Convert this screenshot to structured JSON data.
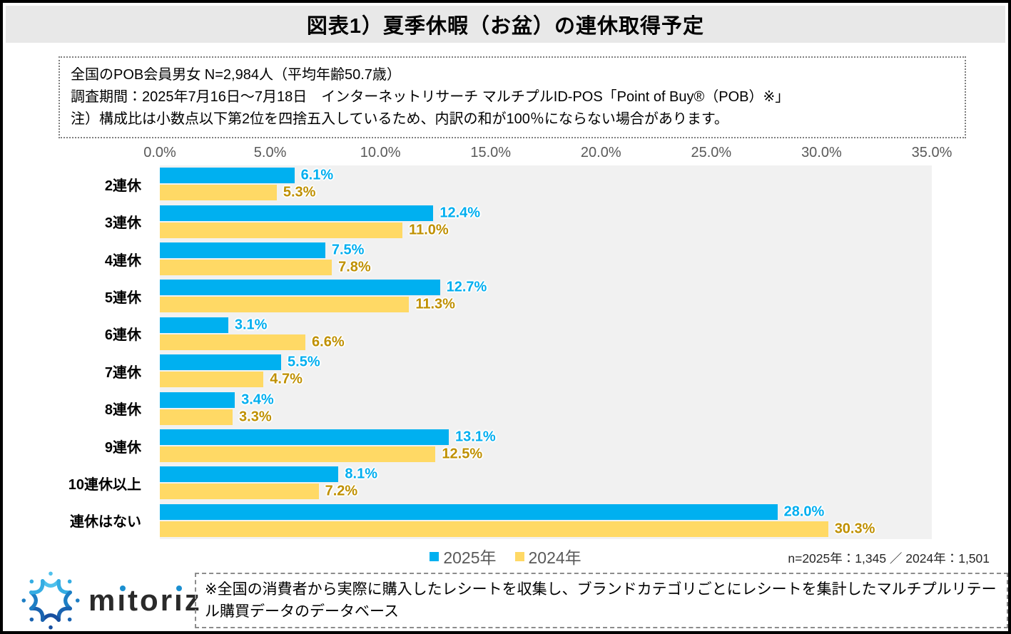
{
  "header": {
    "title": "図表1）夏季休暇（お盆）の連休取得予定"
  },
  "survey_note": {
    "line1": "全国のPOB会員男女 N=2,984人（平均年齢50.7歳）",
    "line2": "調査期間：2025年7月16日～7月18日　インターネットリサーチ マルチプルID-POS「Point of Buy®（POB）※」",
    "line3": "注）構成比は小数点以下第2位を四捨五入しているため、内訳の和が100％にならない場合があります。"
  },
  "chart_data": {
    "type": "bar",
    "orientation": "horizontal",
    "categories": [
      "2連休",
      "3連休",
      "4連休",
      "5連休",
      "6連休",
      "7連休",
      "8連休",
      "9連休",
      "10連休以上",
      "連休はない"
    ],
    "series": [
      {
        "name": "2025年",
        "color": "#00B0F0",
        "label_color": "#00AEEF",
        "values": [
          6.1,
          12.4,
          7.5,
          12.7,
          3.1,
          5.5,
          3.4,
          13.1,
          8.1,
          28.0
        ]
      },
      {
        "name": "2024年",
        "color": "#FFD965",
        "label_color": "#BF9000",
        "values": [
          5.3,
          11.0,
          7.8,
          11.3,
          6.6,
          4.7,
          3.3,
          12.5,
          7.2,
          30.3
        ]
      }
    ],
    "x_ticks": [
      "0.0%",
      "5.0%",
      "10.0%",
      "15.0%",
      "20.0%",
      "25.0%",
      "30.0%",
      "35.0%"
    ],
    "xlim": [
      0,
      35
    ],
    "value_suffix": "%",
    "plot_background": "#F1F1F1",
    "grid": false,
    "legend_position": "bottom-center"
  },
  "sample_note": "n=2025年：1,345 ／ 2024年：1,501",
  "footer": {
    "logo_text": "mitoriz",
    "note": "※全国の消費者から実際に購入したレシートを収集し、ブランドカテゴリごとにレシートを集計したマルチプルリテール購買データのデータベース"
  }
}
